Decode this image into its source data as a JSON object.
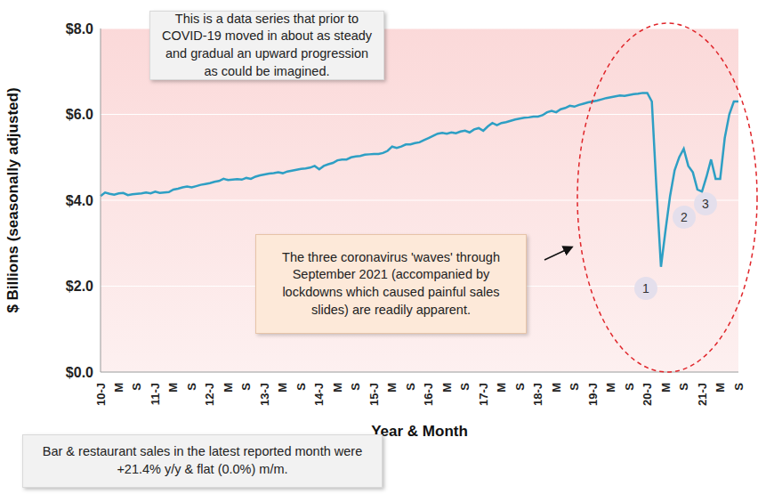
{
  "chart_data": {
    "type": "line",
    "y_label": "$ Billions (seasonally adjusted)",
    "x_label": "Year & Month",
    "color": "#2e9fc4",
    "grid": true,
    "ylim": [
      0,
      8
    ],
    "yticks": [
      {
        "value": 0,
        "label": "$0.0"
      },
      {
        "value": 2,
        "label": "$2.0"
      },
      {
        "value": 4,
        "label": "$4.0"
      },
      {
        "value": 6,
        "label": "$6.0"
      },
      {
        "value": 8,
        "label": "$8.0"
      }
    ],
    "categories": [
      "10-J",
      null,
      null,
      null,
      "M",
      null,
      null,
      null,
      "S",
      null,
      null,
      null,
      "11-J",
      null,
      null,
      null,
      "M",
      null,
      null,
      null,
      "S",
      null,
      null,
      null,
      "12-J",
      null,
      null,
      null,
      "M",
      null,
      null,
      null,
      "S",
      null,
      null,
      null,
      "13-J",
      null,
      null,
      null,
      "M",
      null,
      null,
      null,
      "S",
      null,
      null,
      null,
      "14-J",
      null,
      null,
      null,
      "M",
      null,
      null,
      null,
      "S",
      null,
      null,
      null,
      "15-J",
      null,
      null,
      null,
      "M",
      null,
      null,
      null,
      "S",
      null,
      null,
      null,
      "16-J",
      null,
      null,
      null,
      "M",
      null,
      null,
      null,
      "S",
      null,
      null,
      null,
      "17-J",
      null,
      null,
      null,
      "M",
      null,
      null,
      null,
      "S",
      null,
      null,
      null,
      "18-J",
      null,
      null,
      null,
      "M",
      null,
      null,
      null,
      "S",
      null,
      null,
      null,
      "19-J",
      null,
      null,
      null,
      "M",
      null,
      null,
      null,
      "S",
      null,
      null,
      null,
      "20-J",
      null,
      null,
      null,
      "M",
      null,
      null,
      null,
      "S",
      null,
      null,
      null,
      "21-J",
      null,
      null,
      null,
      "M",
      null,
      null,
      null,
      "S"
    ],
    "values": [
      4.1,
      4.18,
      4.15,
      4.13,
      4.16,
      4.17,
      4.12,
      4.14,
      4.15,
      4.16,
      4.18,
      4.16,
      4.2,
      4.17,
      4.18,
      4.19,
      4.25,
      4.27,
      4.3,
      4.32,
      4.3,
      4.33,
      4.36,
      4.38,
      4.4,
      4.43,
      4.45,
      4.5,
      4.47,
      4.48,
      4.49,
      4.48,
      4.52,
      4.5,
      4.55,
      4.58,
      4.6,
      4.62,
      4.63,
      4.65,
      4.63,
      4.67,
      4.69,
      4.71,
      4.73,
      4.74,
      4.76,
      4.8,
      4.72,
      4.8,
      4.84,
      4.87,
      4.93,
      4.95,
      4.95,
      5.0,
      5.02,
      5.03,
      5.06,
      5.07,
      5.08,
      5.08,
      5.1,
      5.15,
      5.25,
      5.22,
      5.25,
      5.3,
      5.3,
      5.33,
      5.35,
      5.4,
      5.45,
      5.5,
      5.55,
      5.57,
      5.55,
      5.58,
      5.56,
      5.6,
      5.62,
      5.58,
      5.65,
      5.68,
      5.62,
      5.72,
      5.8,
      5.75,
      5.8,
      5.82,
      5.85,
      5.88,
      5.9,
      5.92,
      5.93,
      5.95,
      5.95,
      5.98,
      6.05,
      6.08,
      6.05,
      6.12,
      6.15,
      6.2,
      6.18,
      6.22,
      6.25,
      6.28,
      6.3,
      6.32,
      6.35,
      6.38,
      6.4,
      6.42,
      6.44,
      6.43,
      6.45,
      6.47,
      6.48,
      6.5,
      6.5,
      6.3,
      4.3,
      2.45,
      3.3,
      4.1,
      4.7,
      5.0,
      5.2,
      4.8,
      4.65,
      4.25,
      4.2,
      4.55,
      4.95,
      4.5,
      4.5,
      5.45,
      6.0,
      6.3,
      6.3
    ],
    "annotations": [
      "This is a data series that prior to COVID-19 moved in about as steady and gradual an upward progression as could be imagined.",
      "The three coronavirus 'waves' through September 2021 (accompanied by lockdowns which caused painful sales slides) are readily apparent.",
      "Bar & restaurant sales in the latest reported month were +21.4% y/y & flat (0.0%) m/m.",
      "1",
      "2",
      "3"
    ]
  }
}
